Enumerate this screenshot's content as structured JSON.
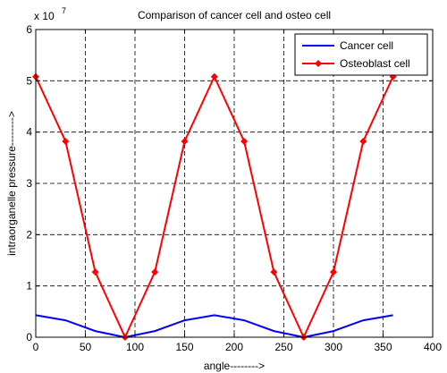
{
  "chart_data": {
    "type": "line",
    "title": "Comparison of cancer cell and osteo cell",
    "xlabel": "angle-------->",
    "ylabel": "intraorganelle pressure-------->",
    "xlim": [
      0,
      400
    ],
    "ylim": [
      0,
      6
    ],
    "y_multiplier": {
      "base": "x 10",
      "exponent": "7"
    },
    "xticks": [
      0,
      50,
      100,
      150,
      200,
      250,
      300,
      350,
      400
    ],
    "yticks": [
      0,
      1,
      2,
      3,
      4,
      5,
      6
    ],
    "grid": true,
    "legend_position": "top-right",
    "series": [
      {
        "name": "Cancer cell",
        "color": "#0000ff",
        "marker": "none",
        "x": [
          0,
          30,
          60,
          90,
          120,
          150,
          180,
          210,
          240,
          270,
          300,
          330,
          360
        ],
        "values": [
          0.43,
          0.33,
          0.12,
          0.0,
          0.12,
          0.33,
          0.43,
          0.33,
          0.12,
          0.0,
          0.12,
          0.33,
          0.43
        ]
      },
      {
        "name": "Osteoblast cell",
        "color": "#ff0000",
        "marker": "diamond",
        "x": [
          0,
          30,
          60,
          90,
          120,
          150,
          180,
          210,
          240,
          270,
          300,
          330,
          360
        ],
        "values": [
          5.08,
          3.82,
          1.27,
          0.0,
          1.27,
          3.82,
          5.08,
          3.82,
          1.27,
          0.0,
          1.27,
          3.82,
          5.08
        ]
      }
    ]
  }
}
